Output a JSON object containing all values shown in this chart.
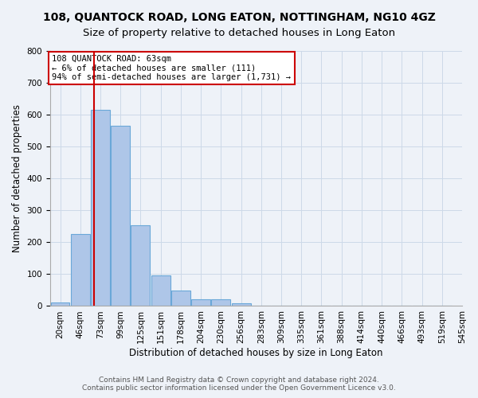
{
  "title": "108, QUANTOCK ROAD, LONG EATON, NOTTINGHAM, NG10 4GZ",
  "subtitle": "Size of property relative to detached houses in Long Eaton",
  "xlabel": "Distribution of detached houses by size in Long Eaton",
  "ylabel": "Number of detached properties",
  "bar_values": [
    10,
    225,
    615,
    565,
    253,
    95,
    48,
    22,
    22,
    8,
    2,
    0,
    0,
    0,
    0,
    0,
    0,
    0,
    0,
    0
  ],
  "bar_labels": [
    "20sqm",
    "46sqm",
    "73sqm",
    "99sqm",
    "125sqm",
    "151sqm",
    "178sqm",
    "204sqm",
    "230sqm",
    "256sqm",
    "283sqm",
    "309sqm",
    "335sqm",
    "361sqm",
    "388sqm",
    "414sqm",
    "440sqm",
    "466sqm",
    "493sqm",
    "519sqm",
    "545sqm"
  ],
  "bar_color": "#aec6e8",
  "bar_edge_color": "#6aa8d8",
  "annotation_box_text": "108 QUANTOCK ROAD: 63sqm\n← 6% of detached houses are smaller (111)\n94% of semi-detached houses are larger (1,731) →",
  "annotation_box_color": "#ffffff",
  "annotation_box_edge_color": "#cc0000",
  "vline_x_index": 1.7,
  "vline_color": "#cc0000",
  "ylim": [
    0,
    800
  ],
  "yticks": [
    0,
    100,
    200,
    300,
    400,
    500,
    600,
    700,
    800
  ],
  "grid_color": "#ccd9e8",
  "bg_color": "#eef2f8",
  "footer_line1": "Contains HM Land Registry data © Crown copyright and database right 2024.",
  "footer_line2": "Contains public sector information licensed under the Open Government Licence v3.0.",
  "title_fontsize": 10,
  "xlabel_fontsize": 8.5,
  "ylabel_fontsize": 8.5,
  "tick_fontsize": 7.5,
  "footer_fontsize": 6.5,
  "annotation_fontsize": 7.5
}
